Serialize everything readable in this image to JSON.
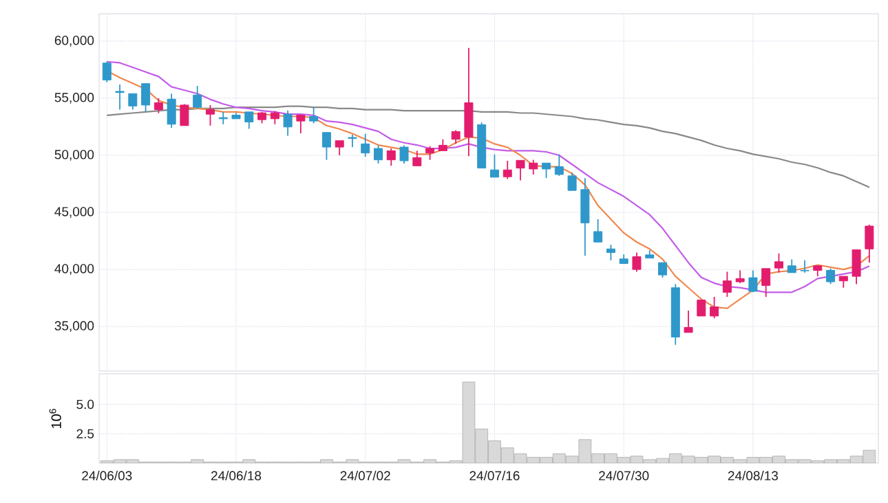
{
  "chart_data": [
    {
      "type": "candlestick",
      "categories": [
        null,
        null,
        null,
        null,
        null,
        null,
        null,
        null,
        null,
        null,
        null,
        null,
        null,
        null,
        null,
        null,
        null,
        null,
        null,
        null,
        null,
        null,
        null,
        null,
        null,
        null,
        null,
        null,
        null,
        null,
        null,
        null,
        null,
        null,
        null,
        null,
        null,
        null,
        null,
        null,
        null,
        null,
        null,
        null,
        null,
        null,
        null,
        null,
        null,
        null,
        null,
        null,
        null,
        null,
        null,
        null,
        null,
        null,
        null,
        null
      ],
      "ohlc": [
        [
          58080,
          58200,
          56400,
          56600
        ],
        [
          55600,
          56200,
          54000,
          55500
        ],
        [
          55400,
          55400,
          54000,
          54320
        ],
        [
          56280,
          56280,
          53800,
          54400
        ],
        [
          54000,
          55000,
          53680,
          54600
        ],
        [
          54920,
          55400,
          52400,
          52720
        ],
        [
          52600,
          54480,
          52600,
          54400
        ],
        [
          55280,
          56080,
          54080,
          54200
        ],
        [
          53600,
          54400,
          52600,
          54000
        ],
        [
          53300,
          53800,
          52720,
          53200
        ],
        [
          53520,
          53720,
          53200,
          53200
        ],
        [
          53800,
          53800,
          52320,
          52920
        ],
        [
          53120,
          53800,
          52800,
          53720
        ],
        [
          53200,
          53880,
          52720,
          53720
        ],
        [
          53600,
          53920,
          51720,
          52480
        ],
        [
          53000,
          53520,
          51920,
          53520
        ],
        [
          53400,
          54200,
          52800,
          53000
        ],
        [
          52000,
          52000,
          49600,
          50720
        ],
        [
          50720,
          51280,
          50000,
          51280
        ],
        [
          51560,
          51800,
          50720,
          51480
        ],
        [
          51000,
          51880,
          49880,
          50200
        ],
        [
          50600,
          50880,
          49280,
          49600
        ],
        [
          49600,
          50600,
          49080,
          50400
        ],
        [
          50720,
          50880,
          49280,
          49520
        ],
        [
          49080,
          50400,
          49080,
          49800
        ],
        [
          50200,
          50800,
          49600,
          50600
        ],
        [
          50400,
          51400,
          50400,
          50880
        ],
        [
          51400,
          52200,
          51000,
          52080
        ],
        [
          51600,
          59400,
          49920,
          54600
        ],
        [
          52680,
          52880,
          48880,
          48880
        ],
        [
          48720,
          50080,
          48080,
          48080
        ],
        [
          48120,
          49520,
          47920,
          48720
        ],
        [
          48880,
          49560,
          47800,
          49560
        ],
        [
          48800,
          49600,
          48320,
          49320
        ],
        [
          49320,
          49320,
          48000,
          48800
        ],
        [
          49000,
          50080,
          48200,
          48320
        ],
        [
          48200,
          48480,
          46920,
          46920
        ],
        [
          47000,
          48000,
          41200,
          44080
        ],
        [
          43320,
          44400,
          42400,
          42400
        ],
        [
          41800,
          42160,
          40800,
          41480
        ],
        [
          40920,
          41320,
          40520,
          40520
        ],
        [
          40000,
          41480,
          39800,
          41120
        ],
        [
          41280,
          41680,
          41000,
          41000
        ],
        [
          40600,
          40600,
          39280,
          39520
        ],
        [
          38400,
          38720,
          33400,
          34080
        ],
        [
          34480,
          36400,
          34480,
          34920
        ],
        [
          35920,
          37320,
          35920,
          37320
        ],
        [
          35920,
          37600,
          35720,
          36720
        ],
        [
          38000,
          39800,
          37600,
          39000
        ],
        [
          38920,
          39920,
          38800,
          39200
        ],
        [
          39280,
          39920,
          38000,
          38080
        ],
        [
          38600,
          40080,
          37600,
          40080
        ],
        [
          40120,
          41400,
          39720,
          40680
        ],
        [
          40320,
          40880,
          39720,
          39720
        ],
        [
          39920,
          40800,
          39720,
          39880
        ],
        [
          39920,
          40320,
          39400,
          40320
        ],
        [
          39920,
          40080,
          38720,
          38920
        ],
        [
          39000,
          39400,
          38400,
          39400
        ],
        [
          39400,
          41720,
          38720,
          41720
        ],
        [
          41800,
          43920,
          40600,
          43800
        ]
      ],
      "colors": [
        "#2f98cb",
        "#2f98cb",
        "#2f98cb",
        "#2f98cb",
        "#e31d6d",
        "#2f98cb",
        "#e31d6d",
        "#2f98cb",
        "#e31d6d",
        "#2f98cb",
        "#2f98cb",
        "#2f98cb",
        "#e31d6d",
        "#e31d6d",
        "#2f98cb",
        "#e31d6d",
        "#2f98cb",
        "#2f98cb",
        "#e31d6d",
        "#2f98cb",
        "#2f98cb",
        "#2f98cb",
        "#e31d6d",
        "#2f98cb",
        "#e31d6d",
        "#e31d6d",
        "#e31d6d",
        "#e31d6d",
        "#e31d6d",
        "#2f98cb",
        "#2f98cb",
        "#e31d6d",
        "#e31d6d",
        "#e31d6d",
        "#2f98cb",
        "#2f98cb",
        "#2f98cb",
        "#2f98cb",
        "#2f98cb",
        "#2f98cb",
        "#2f98cb",
        "#e31d6d",
        "#2f98cb",
        "#2f98cb",
        "#2f98cb",
        "#e31d6d",
        "#e31d6d",
        "#e31d6d",
        "#e31d6d",
        "#e31d6d",
        "#2f98cb",
        "#e31d6d",
        "#e31d6d",
        "#2f98cb",
        "#2f98cb",
        "#e31d6d",
        "#2f98cb",
        "#e31d6d",
        "#e31d6d",
        "#e31d6d"
      ],
      "series": [
        {
          "type": "line",
          "color": "#888888",
          "values": [
            53500,
            53600,
            53700,
            53800,
            53900,
            54000,
            54000,
            54100,
            54100,
            54100,
            54200,
            54200,
            54200,
            54200,
            54300,
            54300,
            54200,
            54200,
            54100,
            54100,
            54000,
            54000,
            54000,
            53900,
            53900,
            53900,
            53900,
            53900,
            53900,
            53800,
            53800,
            53800,
            53700,
            53700,
            53600,
            53500,
            53400,
            53200,
            53100,
            52900,
            52700,
            52600,
            52400,
            52100,
            51900,
            51600,
            51300,
            50900,
            50600,
            50400,
            50100,
            49900,
            49700,
            49400,
            49200,
            48900,
            48500,
            48200,
            47700,
            47200
          ]
        },
        {
          "type": "line",
          "color": "#c35be8",
          "values": [
            58200,
            58100,
            57700,
            57300,
            56900,
            56000,
            55700,
            55400,
            54900,
            54500,
            54200,
            54100,
            53900,
            53800,
            53600,
            53600,
            53500,
            53000,
            52900,
            52700,
            52400,
            52100,
            51400,
            51100,
            50900,
            50600,
            50600,
            50700,
            51000,
            50700,
            50500,
            50400,
            50400,
            50400,
            50300,
            50000,
            49200,
            48400,
            47600,
            47000,
            46400,
            45600,
            44800,
            43600,
            42100,
            40600,
            39300,
            38800,
            38500,
            38400,
            38200,
            38000,
            38000,
            38000,
            38500,
            39200,
            39400,
            39600,
            39800,
            40300
          ]
        },
        {
          "type": "line",
          "color": "#f0884e",
          "values": [
            57400,
            56800,
            56300,
            55800,
            54800,
            54400,
            54200,
            54100,
            54000,
            53800,
            53800,
            53700,
            53600,
            53500,
            53400,
            53400,
            53300,
            52600,
            52300,
            51900,
            51400,
            50900,
            50700,
            50500,
            50100,
            50100,
            50500,
            51100,
            51600,
            51500,
            51000,
            50700,
            50000,
            49100,
            49000,
            49000,
            48400,
            47400,
            45600,
            44400,
            43200,
            42400,
            41800,
            40900,
            39400,
            38400,
            37400,
            36700,
            36600,
            37400,
            38200,
            39600,
            39800,
            39900,
            40100,
            40400,
            40200,
            40000,
            40300,
            41200
          ]
        }
      ],
      "ylim": [
        31100,
        62400
      ],
      "yticks": [
        {
          "value": 35000,
          "label": "35,000"
        },
        {
          "value": 40000,
          "label": "40,000"
        },
        {
          "value": 45000,
          "label": "45,000"
        },
        {
          "value": 50000,
          "label": "50,000"
        },
        {
          "value": 55000,
          "label": "55,000"
        },
        {
          "value": 60000,
          "label": "60,000"
        }
      ],
      "grid": true,
      "tick_labels": "y"
    },
    {
      "type": "bar",
      "categories": [
        "24/06/03",
        null,
        null,
        null,
        null,
        null,
        null,
        null,
        null,
        null,
        "24/06/18",
        null,
        null,
        null,
        null,
        null,
        null,
        null,
        null,
        null,
        "24/07/02",
        null,
        null,
        null,
        null,
        null,
        null,
        null,
        null,
        null,
        "24/07/16",
        null,
        null,
        null,
        null,
        null,
        null,
        null,
        null,
        null,
        "24/07/30",
        null,
        null,
        null,
        null,
        null,
        null,
        null,
        null,
        null,
        "24/08/13",
        null,
        null,
        null,
        null,
        null,
        null,
        null,
        null,
        null
      ],
      "values": [
        0.2,
        0.3,
        0.3,
        0.1,
        0.1,
        0.1,
        0.1,
        0.3,
        0.1,
        0.1,
        0.1,
        0.3,
        0.1,
        0.1,
        0.1,
        0.1,
        0.1,
        0.3,
        0.1,
        0.3,
        0.1,
        0.1,
        0.1,
        0.3,
        0.1,
        0.3,
        0.1,
        0.2,
        6.9,
        2.9,
        1.9,
        1.3,
        0.8,
        0.5,
        0.5,
        0.8,
        0.6,
        2.0,
        0.8,
        0.8,
        0.5,
        0.6,
        0.3,
        0.4,
        0.8,
        0.6,
        0.5,
        0.6,
        0.5,
        0.3,
        0.5,
        0.5,
        0.6,
        0.3,
        0.3,
        0.2,
        0.3,
        0.3,
        0.6,
        1.1
      ],
      "color": "#d9d9d9",
      "ylabel": "10$^{6}$",
      "ylim": [
        0,
        7.6
      ],
      "yticks": [
        {
          "value": 2.5,
          "label": "2.5"
        },
        {
          "value": 5,
          "label": "5.0"
        }
      ],
      "grid": true
    }
  ]
}
